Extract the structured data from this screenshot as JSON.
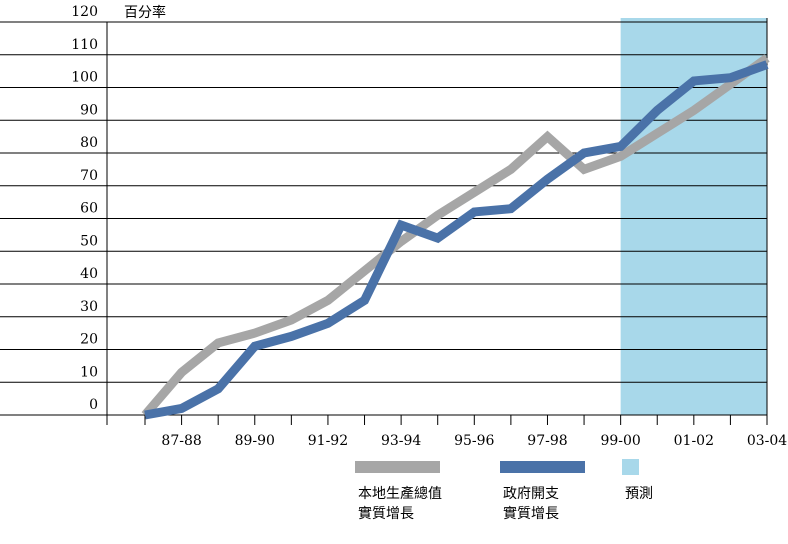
{
  "chart_data": {
    "type": "line",
    "ylabel": "百分率",
    "categories": [
      null,
      "87-88",
      null,
      "89-90",
      null,
      "91-92",
      null,
      "93-94",
      null,
      "95-96",
      null,
      "97-98",
      null,
      "99-00",
      null,
      "01-02",
      null,
      "03-04"
    ],
    "series": [
      {
        "name": "本地生產總值\n實質增長",
        "color": "#a6a6a6",
        "values": [
          0,
          13,
          22,
          25,
          29,
          35,
          44,
          53,
          61,
          68,
          75,
          85,
          75,
          79,
          86,
          93,
          101,
          109
        ]
      },
      {
        "name": "政府開支\n實質增長",
        "color": "#4a72a8",
        "values": [
          0,
          2,
          8,
          21,
          24,
          28,
          35,
          58,
          54,
          62,
          63,
          72,
          80,
          82,
          93,
          102,
          103,
          107
        ]
      }
    ],
    "forecast": {
      "label": "預測",
      "from": "99-00",
      "to": "03-04",
      "color": "#a8d8ea"
    },
    "ylim": [
      0,
      120
    ],
    "yticks": [
      0,
      10,
      20,
      30,
      40,
      50,
      60,
      70,
      80,
      90,
      100,
      110,
      120
    ],
    "grid": true
  }
}
